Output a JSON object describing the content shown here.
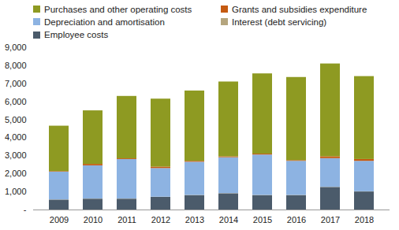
{
  "chart_data": {
    "type": "bar",
    "stacked": true,
    "legend": "top",
    "grid": false,
    "categories": [
      "2009",
      "2010",
      "2011",
      "2012",
      "2013",
      "2014",
      "2015",
      "2016",
      "2017",
      "2018"
    ],
    "series": [
      {
        "name": "Employee costs",
        "color": "#4b5b6b",
        "values": [
          550,
          600,
          600,
          700,
          800,
          900,
          800,
          800,
          1250,
          1000
        ]
      },
      {
        "name": "Interest (debt servicing)",
        "color": "#b5a57e",
        "values": [
          10,
          10,
          10,
          10,
          10,
          10,
          10,
          10,
          10,
          10
        ]
      },
      {
        "name": "Depreciation and amortisation",
        "color": "#8db3e2",
        "values": [
          1540,
          1840,
          2190,
          1590,
          1840,
          1990,
          2240,
          1890,
          1590,
          1690
        ]
      },
      {
        "name": "Grants and subsidies expenditure",
        "color": "#c55a11",
        "values": [
          30,
          80,
          40,
          80,
          50,
          50,
          50,
          40,
          100,
          100
        ]
      },
      {
        "name": "Purchases and other operating costs",
        "color": "#8e9a22",
        "values": [
          2520,
          2970,
          3460,
          3770,
          3900,
          4150,
          4450,
          4610,
          5150,
          4600
        ]
      }
    ],
    "ylim": [
      0,
      9000
    ],
    "yticks": [
      {
        "value": 0,
        "label": "-"
      },
      {
        "value": 1000,
        "label": "1,000"
      },
      {
        "value": 2000,
        "label": "2,000"
      },
      {
        "value": 3000,
        "label": "3,000"
      },
      {
        "value": 4000,
        "label": "4,000"
      },
      {
        "value": 5000,
        "label": "5,000"
      },
      {
        "value": 6000,
        "label": "6,000"
      },
      {
        "value": 7000,
        "label": "7,000"
      },
      {
        "value": 8000,
        "label": "8,000"
      },
      {
        "value": 9000,
        "label": "9,000"
      }
    ]
  }
}
